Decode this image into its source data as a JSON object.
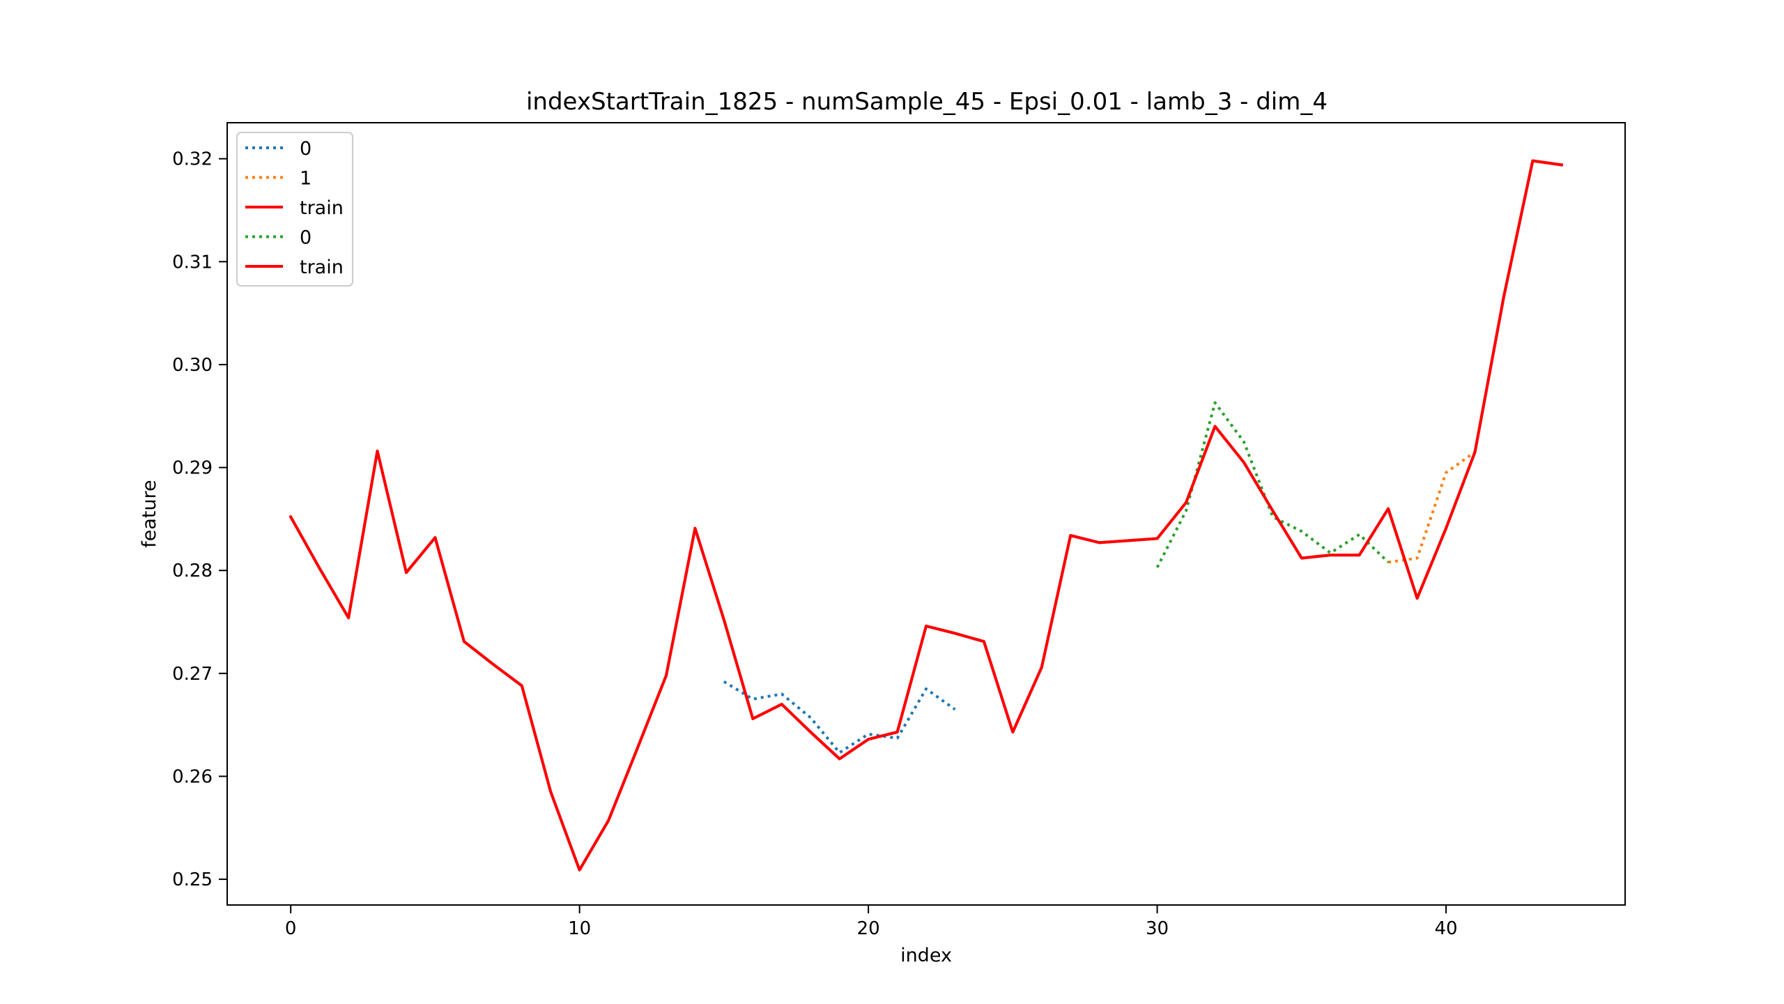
{
  "chart_data": {
    "type": "line",
    "title": "indexStartTrain_1825 - numSample_45 - Epsi_0.01 - lamb_3 - dim_4",
    "xlabel": "index",
    "ylabel": "feature",
    "xlim": [
      -2.2,
      46.2
    ],
    "ylim": [
      0.2475,
      0.3235
    ],
    "xticks": [
      0,
      10,
      20,
      30,
      40
    ],
    "xtick_labels": [
      "0",
      "10",
      "20",
      "30",
      "40"
    ],
    "yticks": [
      0.25,
      0.26,
      0.27,
      0.28,
      0.29,
      0.3,
      0.31,
      0.32
    ],
    "ytick_labels": [
      "0.25",
      "0.26",
      "0.27",
      "0.28",
      "0.29",
      "0.30",
      "0.31",
      "0.32"
    ],
    "grid": false,
    "legend_position": "top-left",
    "series": [
      {
        "name": "0",
        "color": "#1f77b4",
        "style": "dotted",
        "x": [
          15,
          16,
          17,
          18,
          19,
          20,
          21,
          22,
          23
        ],
        "y": [
          0.2692,
          0.2675,
          0.268,
          0.2657,
          0.2623,
          0.2641,
          0.2637,
          0.2685,
          0.2665
        ]
      },
      {
        "name": "1",
        "color": "#ff7f0e",
        "style": "dotted",
        "x": [
          38,
          39,
          40,
          41
        ],
        "y": [
          0.2808,
          0.2812,
          0.2895,
          0.2915
        ]
      },
      {
        "name": "train",
        "color": "#ff0000",
        "style": "solid",
        "x": [
          0,
          1,
          2,
          3,
          4,
          5,
          6,
          7,
          8,
          9,
          10,
          11,
          12,
          13,
          14,
          15,
          16,
          17,
          18,
          19,
          20,
          21,
          22,
          23,
          24,
          25,
          26,
          27,
          28,
          29,
          30,
          31,
          32,
          33,
          34,
          35,
          36,
          37,
          38,
          39,
          40,
          41,
          42,
          43,
          44
        ],
        "y": [
          0.2852,
          0.2802,
          0.2754,
          0.2916,
          0.2798,
          0.2832,
          0.2731,
          0.2709,
          0.2688,
          0.2585,
          0.2509,
          0.2557,
          0.2627,
          0.2698,
          0.2841,
          0.2752,
          0.2656,
          0.267,
          0.2643,
          0.2617,
          0.2636,
          0.2643,
          0.2746,
          0.2739,
          0.2731,
          0.2643,
          0.2706,
          0.2834,
          0.2827,
          0.2829,
          0.2831,
          0.2866,
          0.294,
          0.2905,
          0.2858,
          0.2812,
          0.2815,
          0.2815,
          0.286,
          0.2773,
          0.2841,
          0.2915,
          0.3066,
          0.3198,
          0.3194
        ]
      },
      {
        "name": "0",
        "color": "#2ca02c",
        "style": "dotted",
        "x": [
          30,
          31,
          32,
          33,
          34,
          35,
          36,
          37,
          38
        ],
        "y": [
          0.2803,
          0.2858,
          0.2963,
          0.2925,
          0.2852,
          0.2838,
          0.2817,
          0.2835,
          0.2808
        ]
      },
      {
        "name": "train",
        "color": "#ff0000",
        "style": "solid",
        "x": [
          0,
          1,
          2,
          3,
          4,
          5,
          6,
          7,
          8,
          9,
          10,
          11,
          12,
          13,
          14,
          15,
          16,
          17,
          18,
          19,
          20,
          21,
          22,
          23,
          24,
          25,
          26,
          27,
          28,
          29,
          30,
          31,
          32,
          33,
          34,
          35,
          36,
          37,
          38,
          39,
          40,
          41,
          42,
          43,
          44
        ],
        "y": [
          0.2852,
          0.2802,
          0.2754,
          0.2916,
          0.2798,
          0.2832,
          0.2731,
          0.2709,
          0.2688,
          0.2585,
          0.2509,
          0.2557,
          0.2627,
          0.2698,
          0.2841,
          0.2752,
          0.2656,
          0.267,
          0.2643,
          0.2617,
          0.2636,
          0.2643,
          0.2746,
          0.2739,
          0.2731,
          0.2643,
          0.2706,
          0.2834,
          0.2827,
          0.2829,
          0.2831,
          0.2866,
          0.294,
          0.2905,
          0.2858,
          0.2812,
          0.2815,
          0.2815,
          0.286,
          0.2773,
          0.2841,
          0.2915,
          0.3066,
          0.3198,
          0.3194
        ]
      }
    ]
  }
}
